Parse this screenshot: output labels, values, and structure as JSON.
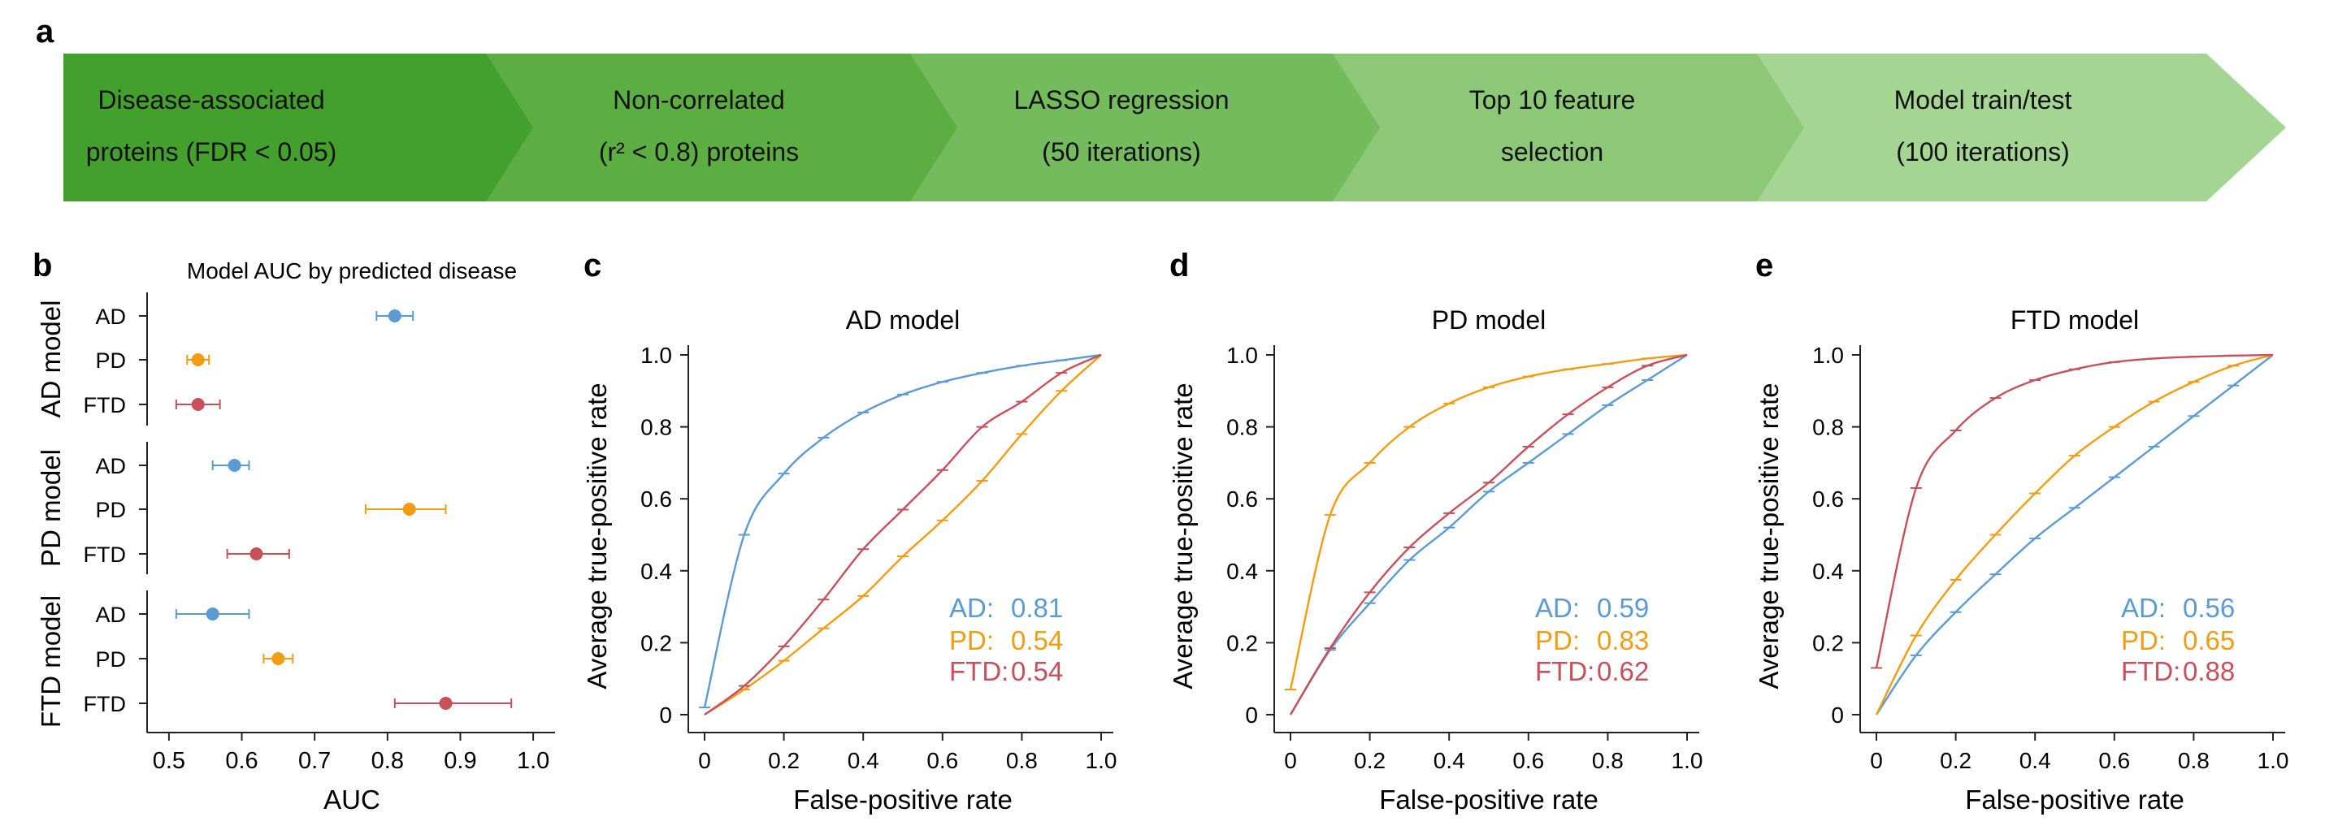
{
  "panel_labels": {
    "a": "a",
    "b": "b",
    "c": "c",
    "d": "d",
    "e": "e"
  },
  "pipeline": {
    "colors": [
      "#44a02c",
      "#5cae43",
      "#74bb5d",
      "#8dc878",
      "#a5d593"
    ],
    "steps": [
      {
        "lines": [
          "Disease-associated",
          "proteins (FDR < 0.05)"
        ]
      },
      {
        "lines": [
          "Non-correlated",
          "(r² < 0.8) proteins"
        ]
      },
      {
        "lines": [
          "LASSO regression",
          "(50 iterations)"
        ]
      },
      {
        "lines": [
          "Top 10 feature",
          "selection"
        ]
      },
      {
        "lines": [
          "Model train/test",
          "(100 iterations)"
        ]
      }
    ]
  },
  "colors": {
    "AD": "#5b9bd5",
    "PD": "#f39c12",
    "FTD": "#c8505a"
  },
  "chart_data": [
    {
      "type": "scatter",
      "title": "Model AUC by predicted disease",
      "xlabel": "AUC",
      "xlim": [
        0.47,
        1.03
      ],
      "xticks": [
        0.5,
        0.6,
        0.7,
        0.8,
        0.9,
        1.0
      ],
      "xtick_labels": [
        "0.5",
        "0.6",
        "0.7",
        "0.8",
        "0.9",
        "1.0"
      ],
      "groups": [
        {
          "name": "AD model",
          "points": [
            {
              "label": "AD",
              "auc": 0.81,
              "lo": 0.785,
              "hi": 0.835
            },
            {
              "label": "PD",
              "auc": 0.54,
              "lo": 0.525,
              "hi": 0.555
            },
            {
              "label": "FTD",
              "auc": 0.54,
              "lo": 0.51,
              "hi": 0.57
            }
          ]
        },
        {
          "name": "PD model",
          "points": [
            {
              "label": "AD",
              "auc": 0.59,
              "lo": 0.56,
              "hi": 0.61
            },
            {
              "label": "PD",
              "auc": 0.83,
              "lo": 0.77,
              "hi": 0.88
            },
            {
              "label": "FTD",
              "auc": 0.62,
              "lo": 0.58,
              "hi": 0.665
            }
          ]
        },
        {
          "name": "FTD model",
          "points": [
            {
              "label": "AD",
              "auc": 0.56,
              "lo": 0.51,
              "hi": 0.61
            },
            {
              "label": "PD",
              "auc": 0.65,
              "lo": 0.63,
              "hi": 0.67
            },
            {
              "label": "FTD",
              "auc": 0.88,
              "lo": 0.81,
              "hi": 0.97
            }
          ]
        }
      ]
    },
    {
      "type": "line",
      "title": "AD model",
      "xlabel": "False-positive rate",
      "ylabel": "Average true-positive rate",
      "xlim": [
        0,
        1
      ],
      "ylim": [
        0,
        1
      ],
      "ticks": [
        0,
        0.2,
        0.4,
        0.6,
        0.8,
        1.0
      ],
      "tick_labels": [
        "0",
        "0.2",
        "0.4",
        "0.6",
        "0.8",
        "1.0"
      ],
      "x": [
        0,
        0.1,
        0.2,
        0.3,
        0.4,
        0.5,
        0.6,
        0.7,
        0.8,
        0.9,
        1.0
      ],
      "series": [
        {
          "key": "AD",
          "name": "AD:",
          "auc": "0.81",
          "start": 0.02,
          "y": [
            0.02,
            0.5,
            0.67,
            0.77,
            0.84,
            0.89,
            0.925,
            0.95,
            0.97,
            0.985,
            1.0
          ]
        },
        {
          "key": "PD",
          "name": "PD:",
          "auc": "0.54",
          "start": 0.0,
          "y": [
            0.0,
            0.07,
            0.15,
            0.24,
            0.33,
            0.44,
            0.54,
            0.65,
            0.78,
            0.9,
            1.0
          ]
        },
        {
          "key": "FTD",
          "name": "FTD:",
          "auc": "0.54",
          "start": 0.0,
          "y": [
            0.0,
            0.08,
            0.19,
            0.32,
            0.46,
            0.57,
            0.68,
            0.8,
            0.87,
            0.95,
            1.0
          ]
        }
      ]
    },
    {
      "type": "line",
      "title": "PD model",
      "xlabel": "False-positive rate",
      "ylabel": "Average true-positive rate",
      "xlim": [
        0,
        1
      ],
      "ylim": [
        0,
        1
      ],
      "ticks": [
        0,
        0.2,
        0.4,
        0.6,
        0.8,
        1.0
      ],
      "tick_labels": [
        "0",
        "0.2",
        "0.4",
        "0.6",
        "0.8",
        "1.0"
      ],
      "x": [
        0,
        0.1,
        0.2,
        0.3,
        0.4,
        0.5,
        0.6,
        0.7,
        0.8,
        0.9,
        1.0
      ],
      "series": [
        {
          "key": "AD",
          "name": "AD:",
          "auc": "0.59",
          "start": 0.0,
          "y": [
            0.0,
            0.18,
            0.31,
            0.43,
            0.52,
            0.62,
            0.7,
            0.78,
            0.86,
            0.93,
            1.0
          ]
        },
        {
          "key": "PD",
          "name": "PD:",
          "auc": "0.83",
          "start": 0.07,
          "y": [
            0.07,
            0.555,
            0.7,
            0.8,
            0.865,
            0.91,
            0.94,
            0.96,
            0.975,
            0.99,
            1.0
          ]
        },
        {
          "key": "FTD",
          "name": "FTD:",
          "auc": "0.62",
          "start": 0.0,
          "y": [
            0.0,
            0.185,
            0.34,
            0.465,
            0.56,
            0.645,
            0.745,
            0.835,
            0.91,
            0.97,
            1.0
          ]
        }
      ]
    },
    {
      "type": "line",
      "title": "FTD model",
      "xlabel": "False-positive rate",
      "ylabel": "Average true-positive rate",
      "xlim": [
        0,
        1
      ],
      "ylim": [
        0,
        1
      ],
      "ticks": [
        0,
        0.2,
        0.4,
        0.6,
        0.8,
        1.0
      ],
      "tick_labels": [
        "0",
        "0.2",
        "0.4",
        "0.6",
        "0.8",
        "1.0"
      ],
      "x": [
        0,
        0.1,
        0.2,
        0.3,
        0.4,
        0.5,
        0.6,
        0.7,
        0.8,
        0.9,
        1.0
      ],
      "series": [
        {
          "key": "AD",
          "name": "AD:",
          "auc": "0.56",
          "start": 0.0,
          "y": [
            0.0,
            0.165,
            0.285,
            0.39,
            0.49,
            0.575,
            0.66,
            0.745,
            0.83,
            0.915,
            1.0
          ]
        },
        {
          "key": "PD",
          "name": "PD:",
          "auc": "0.65",
          "start": 0.0,
          "y": [
            0.0,
            0.22,
            0.375,
            0.5,
            0.615,
            0.72,
            0.8,
            0.87,
            0.925,
            0.97,
            1.0
          ]
        },
        {
          "key": "FTD",
          "name": "FTD:",
          "auc": "0.88",
          "start": 0.13,
          "y": [
            0.13,
            0.63,
            0.79,
            0.88,
            0.93,
            0.96,
            0.98,
            0.99,
            0.995,
            0.998,
            1.0
          ]
        }
      ]
    }
  ]
}
